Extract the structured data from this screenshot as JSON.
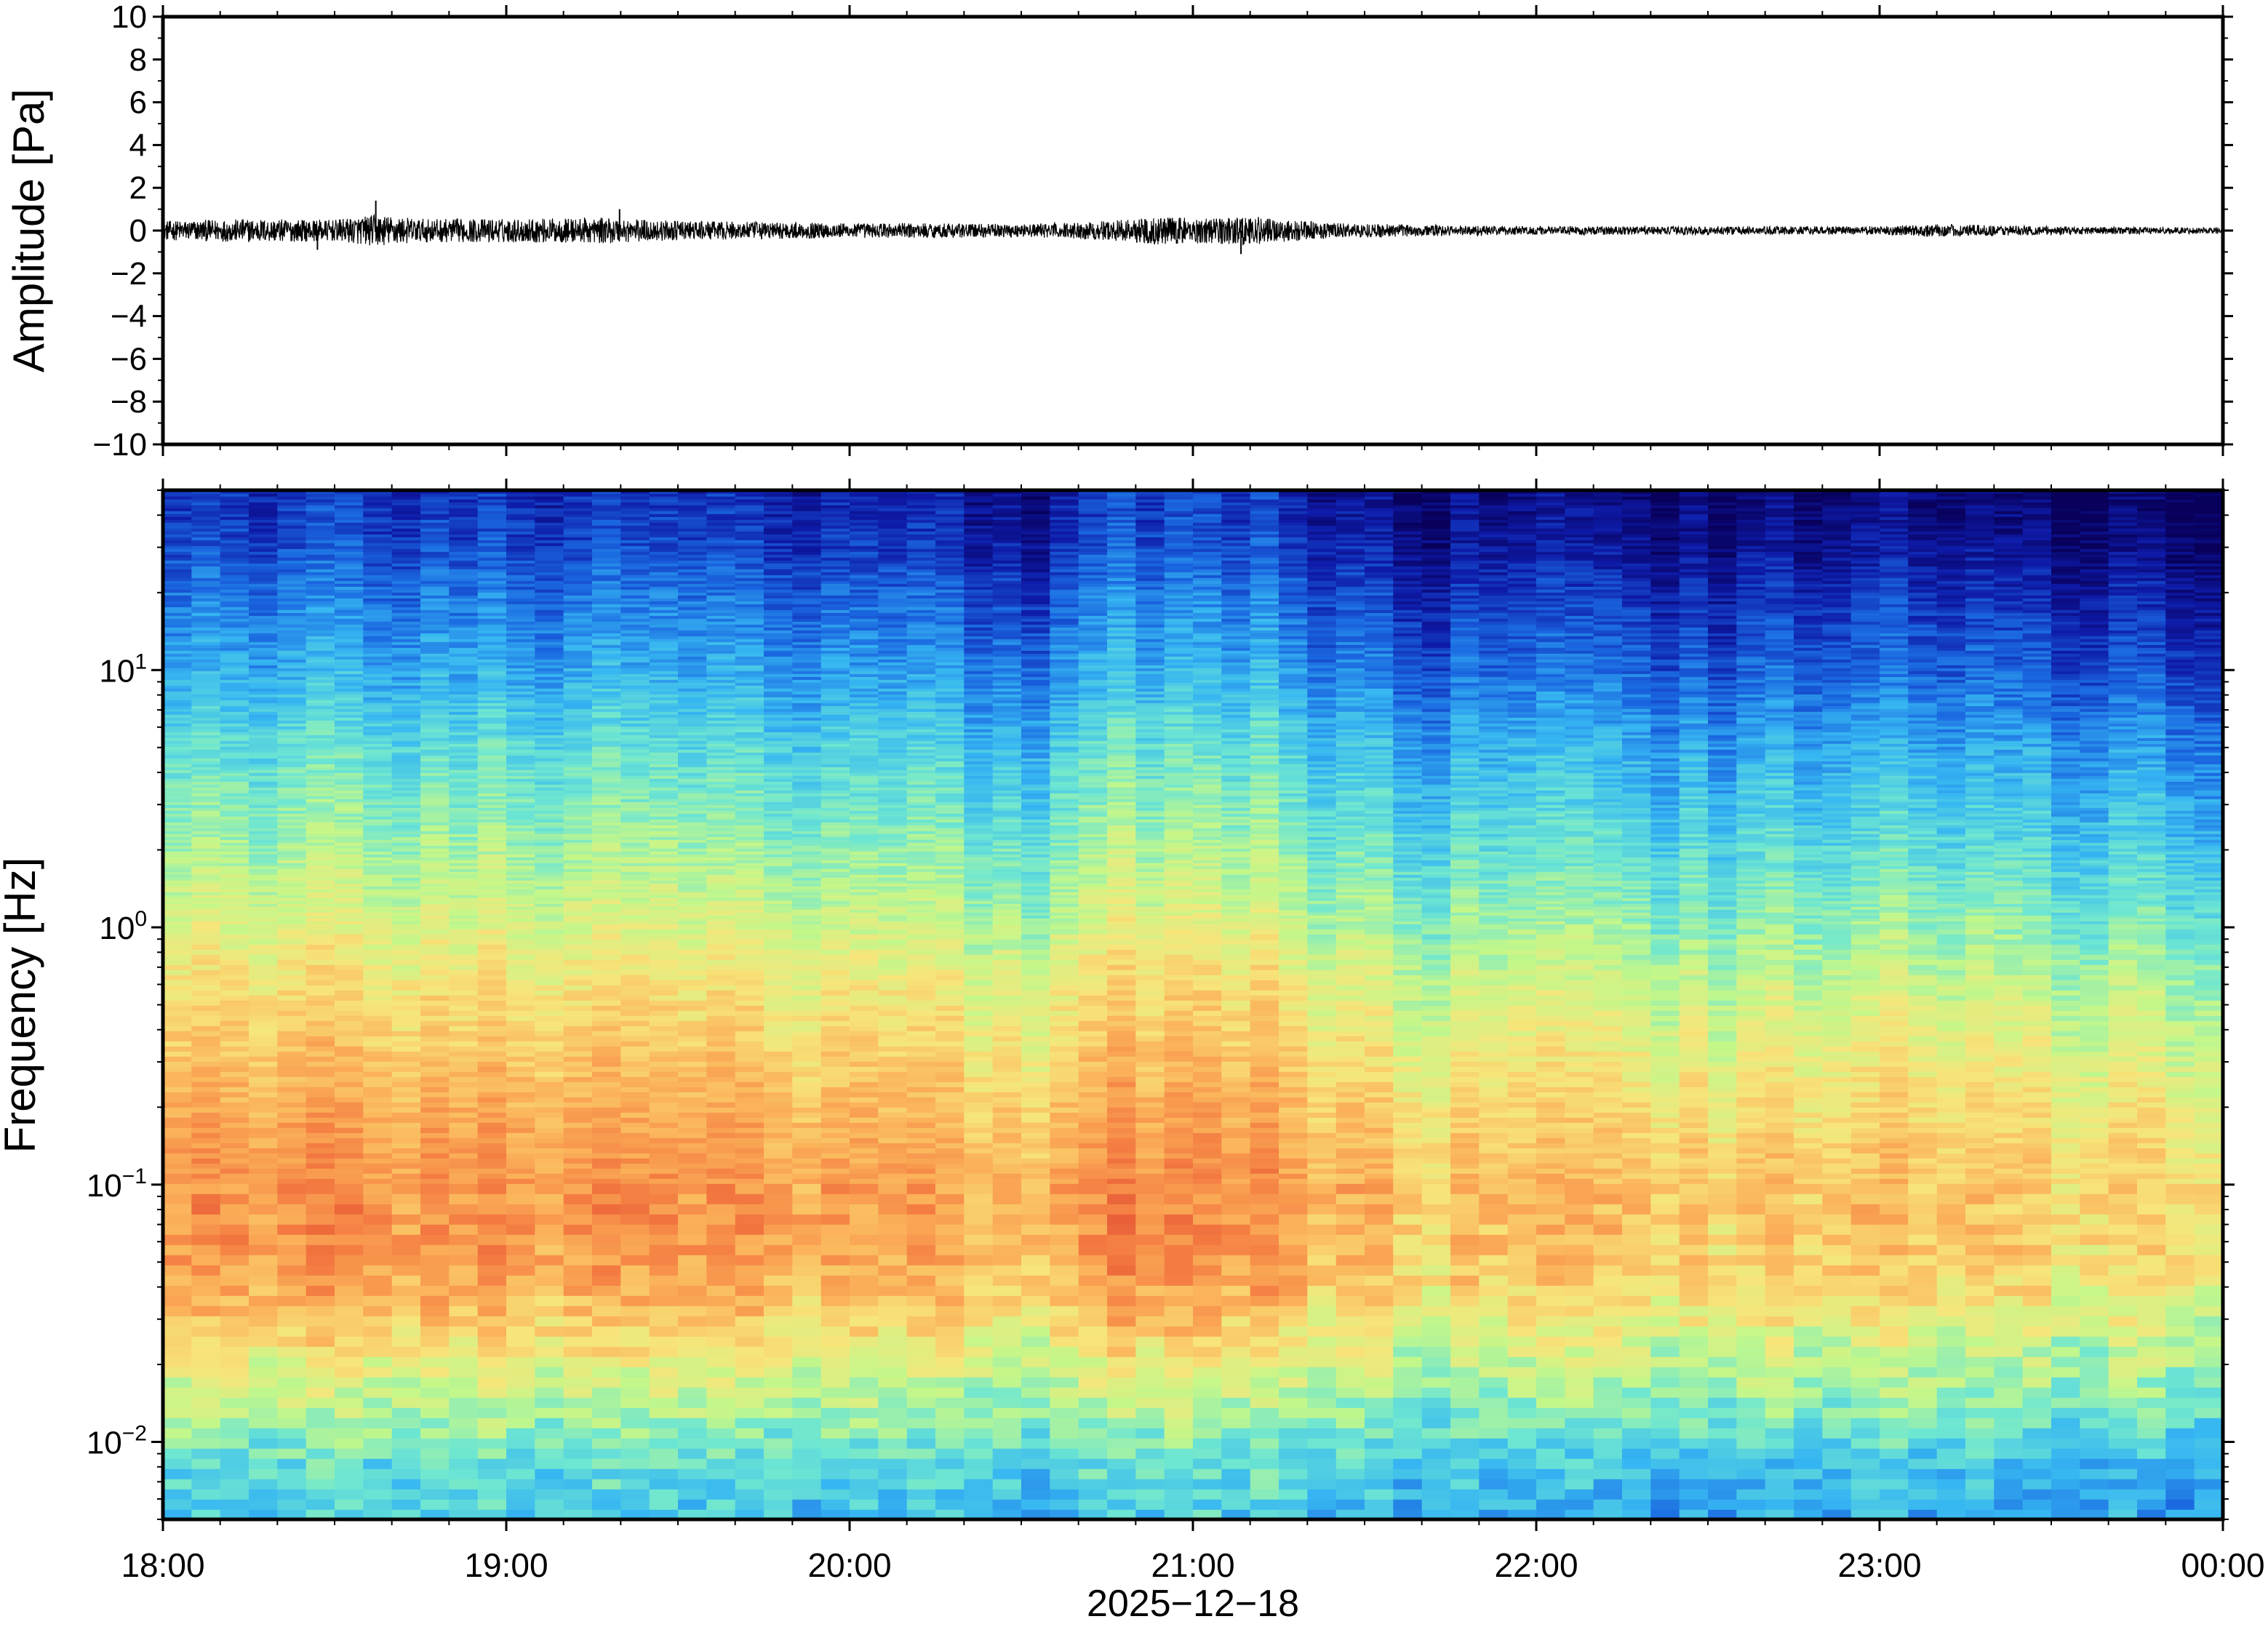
{
  "chart_data": [
    {
      "type": "line",
      "name": "waveform",
      "ylabel": "Amplitude [Pa]",
      "ylim": [
        -10,
        10
      ],
      "yticks": [
        10,
        8,
        6,
        4,
        2,
        0,
        -2,
        -4,
        -6,
        -8,
        -10
      ],
      "ytick_labels": [
        "10",
        "8",
        "6",
        "4",
        "2",
        "0",
        "−2",
        "−4",
        "−6",
        "−8",
        "−10"
      ],
      "xlim_hours": [
        18,
        24
      ],
      "grid": false,
      "trace_color": "#000000",
      "envelope": {
        "t_hours": [
          18.0,
          18.25,
          18.5,
          18.62,
          18.75,
          19.0,
          19.3,
          19.5,
          19.75,
          20.0,
          20.25,
          20.5,
          20.75,
          20.9,
          21.0,
          21.15,
          21.4,
          21.75,
          22.0,
          22.5,
          22.8,
          23.0,
          23.15,
          23.5,
          23.8,
          24.0
        ],
        "half_amplitude_pa": [
          0.45,
          0.55,
          0.5,
          0.75,
          0.55,
          0.55,
          0.6,
          0.45,
          0.4,
          0.35,
          0.35,
          0.3,
          0.45,
          0.65,
          0.6,
          0.7,
          0.35,
          0.25,
          0.2,
          0.2,
          0.2,
          0.2,
          0.3,
          0.2,
          0.15,
          0.15
        ]
      },
      "spikes": [
        {
          "t_hours": 18.62,
          "pa": 1.4
        },
        {
          "t_hours": 19.33,
          "pa": 1.0
        },
        {
          "t_hours": 21.14,
          "pa": -1.1
        },
        {
          "t_hours": 18.45,
          "pa": -0.9
        }
      ]
    },
    {
      "type": "heatmap",
      "name": "spectrogram",
      "ylabel": "Frequency [Hz]",
      "yscale": "log",
      "ylim": [
        0.005,
        50
      ],
      "yticks": [
        {
          "base": "10",
          "exp": "−2",
          "value": 0.01
        },
        {
          "base": "10",
          "exp": "−1",
          "value": 0.1
        },
        {
          "base": "10",
          "exp": "0",
          "value": 1
        },
        {
          "base": "10",
          "exp": "1",
          "value": 10
        }
      ],
      "xlabel": "2025−12−18",
      "xticks": [
        "18:00",
        "19:00",
        "20:00",
        "21:00",
        "22:00",
        "23:00",
        "00:00"
      ],
      "xlim_hours": [
        18,
        24
      ],
      "colormap": [
        "#08005a",
        "#0e1ba8",
        "#1a66e0",
        "#36b6f2",
        "#6de6d2",
        "#c3f78a",
        "#f7e57a",
        "#fbb35a",
        "#f47d42",
        "#e14a30"
      ],
      "power_profile": {
        "freq_hz": [
          0.005,
          0.008,
          0.012,
          0.018,
          0.025,
          0.04,
          0.06,
          0.09,
          0.15,
          0.3,
          0.6,
          1,
          2,
          5,
          10,
          20,
          30,
          50
        ],
        "level": [
          0.36,
          0.4,
          0.5,
          0.58,
          0.66,
          0.76,
          0.8,
          0.8,
          0.77,
          0.7,
          0.63,
          0.56,
          0.48,
          0.38,
          0.28,
          0.2,
          0.14,
          0.1
        ]
      },
      "activity_over_time": {
        "t_hours": [
          18.0,
          18.3,
          18.6,
          19.0,
          19.3,
          19.6,
          20.0,
          20.3,
          20.6,
          20.8,
          20.95,
          21.2,
          21.4,
          21.7,
          22.0,
          22.3,
          22.6,
          22.9,
          23.1,
          23.4,
          23.7,
          24.0
        ],
        "offset": [
          0.02,
          0.04,
          0.05,
          0.04,
          0.04,
          0.02,
          0.0,
          -0.01,
          -0.03,
          0.06,
          0.08,
          0.05,
          -0.04,
          -0.07,
          -0.06,
          -0.07,
          -0.08,
          -0.05,
          -0.04,
          -0.08,
          -0.09,
          -0.1
        ]
      }
    }
  ]
}
